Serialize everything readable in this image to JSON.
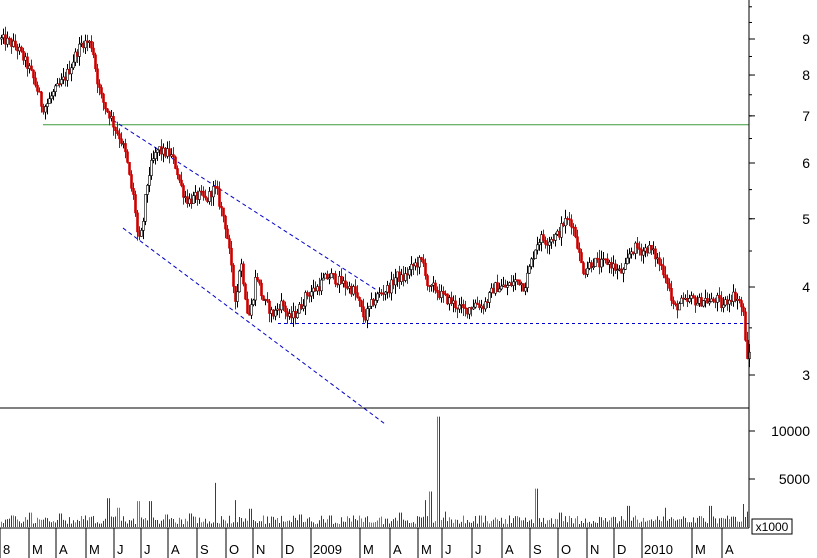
{
  "chart_data": {
    "type": "candlestick",
    "price_axis": {
      "scale": "log",
      "ticks": [
        3,
        4,
        5,
        6,
        7,
        8,
        9
      ],
      "range": [
        2.7,
        10.2
      ]
    },
    "volume_axis": {
      "ticks": [
        5000,
        10000
      ],
      "unit_label": "x1000",
      "range": [
        0,
        12000
      ]
    },
    "month_labels": [
      "8",
      "M",
      "A",
      "M",
      "J",
      "J",
      "A",
      "S",
      "O",
      "N",
      "D",
      "2009",
      "M",
      "A",
      "M",
      "J",
      "J",
      "A",
      "S",
      "O",
      "N",
      "D",
      "2010",
      "M",
      "A"
    ],
    "price_path": [
      [
        0,
        9.0
      ],
      [
        5,
        8.95
      ],
      [
        12,
        8.85
      ],
      [
        18,
        8.7
      ],
      [
        24,
        8.4
      ],
      [
        30,
        8.1
      ],
      [
        36,
        7.7
      ],
      [
        42,
        7.2
      ],
      [
        46,
        7.25
      ],
      [
        52,
        7.5
      ],
      [
        58,
        7.7
      ],
      [
        64,
        7.9
      ],
      [
        70,
        8.2
      ],
      [
        76,
        8.6
      ],
      [
        82,
        8.9
      ],
      [
        88,
        8.9
      ],
      [
        92,
        8.8
      ],
      [
        96,
        8.0
      ],
      [
        100,
        7.5
      ],
      [
        105,
        7.2
      ],
      [
        110,
        7.0
      ],
      [
        114,
        6.75
      ],
      [
        118,
        6.6
      ],
      [
        122,
        6.4
      ],
      [
        126,
        6.1
      ],
      [
        130,
        5.6
      ],
      [
        134,
        5.3
      ],
      [
        138,
        4.6
      ],
      [
        142,
        4.8
      ],
      [
        146,
        5.5
      ],
      [
        150,
        5.9
      ],
      [
        154,
        6.1
      ],
      [
        158,
        6.3
      ],
      [
        162,
        6.2
      ],
      [
        168,
        6.2
      ],
      [
        172,
        6.1
      ],
      [
        176,
        5.9
      ],
      [
        180,
        5.6
      ],
      [
        184,
        5.4
      ],
      [
        188,
        5.3
      ],
      [
        194,
        5.35
      ],
      [
        200,
        5.4
      ],
      [
        206,
        5.3
      ],
      [
        212,
        5.5
      ],
      [
        216,
        5.5
      ],
      [
        220,
        5.2
      ],
      [
        224,
        5.0
      ],
      [
        228,
        4.6
      ],
      [
        232,
        4.1
      ],
      [
        236,
        3.8
      ],
      [
        240,
        4.4
      ],
      [
        244,
        4.0
      ],
      [
        248,
        3.6
      ],
      [
        252,
        3.8
      ],
      [
        256,
        4.2
      ],
      [
        260,
        3.95
      ],
      [
        264,
        3.8
      ],
      [
        268,
        3.75
      ],
      [
        272,
        3.65
      ],
      [
        276,
        3.7
      ],
      [
        280,
        3.8
      ],
      [
        284,
        3.75
      ],
      [
        288,
        3.6
      ],
      [
        294,
        3.65
      ],
      [
        300,
        3.75
      ],
      [
        306,
        3.9
      ],
      [
        312,
        3.95
      ],
      [
        318,
        4.0
      ],
      [
        324,
        4.1
      ],
      [
        330,
        4.15
      ],
      [
        336,
        4.1
      ],
      [
        342,
        4.05
      ],
      [
        348,
        4.0
      ],
      [
        354,
        3.95
      ],
      [
        360,
        3.75
      ],
      [
        364,
        3.6
      ],
      [
        368,
        3.7
      ],
      [
        372,
        3.8
      ],
      [
        378,
        3.9
      ],
      [
        384,
        3.95
      ],
      [
        390,
        4.0
      ],
      [
        396,
        4.15
      ],
      [
        402,
        4.1
      ],
      [
        408,
        4.2
      ],
      [
        414,
        4.3
      ],
      [
        420,
        4.35
      ],
      [
        424,
        4.3
      ],
      [
        428,
        3.95
      ],
      [
        434,
        4.0
      ],
      [
        440,
        3.9
      ],
      [
        446,
        3.85
      ],
      [
        452,
        3.8
      ],
      [
        458,
        3.75
      ],
      [
        464,
        3.7
      ],
      [
        470,
        3.75
      ],
      [
        476,
        3.8
      ],
      [
        482,
        3.75
      ],
      [
        488,
        3.85
      ],
      [
        494,
        4.0
      ],
      [
        500,
        4.0
      ],
      [
        506,
        4.0
      ],
      [
        512,
        4.05
      ],
      [
        518,
        4.1
      ],
      [
        524,
        4.0
      ],
      [
        528,
        4.2
      ],
      [
        532,
        4.4
      ],
      [
        536,
        4.6
      ],
      [
        540,
        4.7
      ],
      [
        546,
        4.65
      ],
      [
        552,
        4.7
      ],
      [
        558,
        4.75
      ],
      [
        564,
        4.95
      ],
      [
        570,
        5.0
      ],
      [
        576,
        4.7
      ],
      [
        580,
        4.35
      ],
      [
        584,
        4.2
      ],
      [
        588,
        4.3
      ],
      [
        594,
        4.35
      ],
      [
        600,
        4.3
      ],
      [
        606,
        4.35
      ],
      [
        612,
        4.3
      ],
      [
        618,
        4.2
      ],
      [
        624,
        4.2
      ],
      [
        630,
        4.5
      ],
      [
        636,
        4.55
      ],
      [
        642,
        4.5
      ],
      [
        648,
        4.55
      ],
      [
        654,
        4.45
      ],
      [
        660,
        4.3
      ],
      [
        664,
        4.2
      ],
      [
        668,
        4.05
      ],
      [
        672,
        3.75
      ],
      [
        676,
        3.75
      ],
      [
        680,
        3.8
      ],
      [
        686,
        3.8
      ],
      [
        692,
        3.85
      ],
      [
        698,
        3.8
      ],
      [
        704,
        3.85
      ],
      [
        710,
        3.8
      ],
      [
        716,
        3.85
      ],
      [
        722,
        3.75
      ],
      [
        728,
        3.85
      ],
      [
        734,
        3.9
      ],
      [
        740,
        3.8
      ],
      [
        744,
        3.6
      ],
      [
        746,
        3.2
      ],
      [
        748,
        3.05
      ],
      [
        750,
        3.4
      ]
    ],
    "volume_spikes": [
      [
        12,
        1200
      ],
      [
        30,
        1500
      ],
      [
        60,
        1400
      ],
      [
        85,
        1200
      ],
      [
        108,
        3000
      ],
      [
        118,
        2000
      ],
      [
        138,
        2700
      ],
      [
        150,
        2700
      ],
      [
        166,
        1300
      ],
      [
        190,
        1400
      ],
      [
        215,
        4600
      ],
      [
        235,
        2800
      ],
      [
        250,
        1900
      ],
      [
        300,
        1300
      ],
      [
        330,
        1200
      ],
      [
        400,
        1500
      ],
      [
        425,
        2800
      ],
      [
        430,
        3700
      ],
      [
        438,
        11500
      ],
      [
        445,
        1600
      ],
      [
        480,
        1200
      ],
      [
        536,
        4000
      ],
      [
        560,
        1500
      ],
      [
        628,
        2200
      ],
      [
        665,
        2000
      ],
      [
        710,
        2200
      ],
      [
        743,
        2400
      ],
      [
        748,
        1600
      ]
    ],
    "annotations": {
      "green_line_price": 6.8,
      "support_line_price": 3.55,
      "upper_channel_start": [
        113,
        6.9
      ],
      "upper_channel_end": [
        378,
        3.95
      ],
      "lower_channel_start": [
        123,
        4.85
      ],
      "lower_channel_end": [
        386,
        2.55
      ]
    }
  },
  "colors": {
    "up_candle": "#000000",
    "down_candle": "#cc0000",
    "green_line": "#3c9a3c",
    "channel_line": "#0000cc",
    "volume_bar": "#cc0000",
    "volume_bar_alt": "#777777"
  }
}
